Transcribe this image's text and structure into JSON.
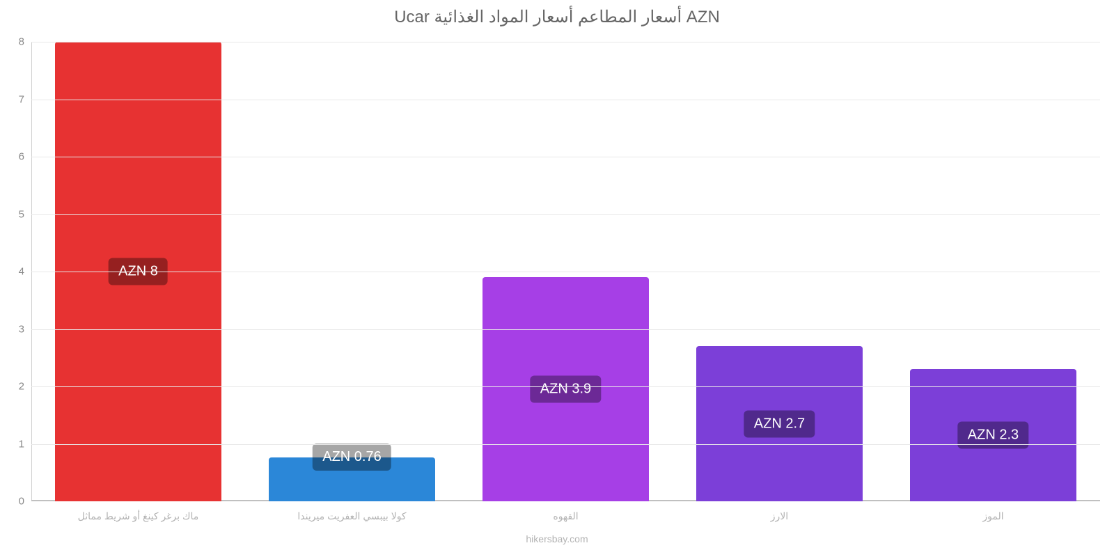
{
  "chart": {
    "type": "bar",
    "title": "Ucar أسعار المطاعم أسعار المواد الغذائية AZN",
    "title_fontsize": 24,
    "title_color": "#666666",
    "background_color": "#ffffff",
    "grid_color": "#e8e8e8",
    "axis_label_color": "#898989",
    "x_label_color": "#b3b3b3",
    "ylim": [
      0,
      8
    ],
    "ytick_step": 1,
    "yticks": [
      0,
      1,
      2,
      3,
      4,
      5,
      6,
      7,
      8
    ],
    "bar_width": 0.78,
    "bar_label_bg": "rgba(0,0,0,0.35)",
    "bar_label_color": "#ffffff",
    "bar_label_fontsize": 20,
    "categories": [
      "ماك برغر كينغ أو شريط مماثل",
      "كولا بيبسي العفريت ميريندا",
      "القهوه",
      "الارز",
      "الموز"
    ],
    "values": [
      8,
      0.76,
      3.9,
      2.7,
      2.3
    ],
    "bar_labels": [
      "AZN 8",
      "AZN 0.76",
      "AZN 3.9",
      "AZN 2.7",
      "AZN 2.3"
    ],
    "bar_colors": [
      "#e73232",
      "#2b87d8",
      "#a63fe6",
      "#7c3fd8",
      "#7c3fd8"
    ],
    "footer": "hikersbay.com",
    "x_label_fontsize": 14,
    "footer_fontsize": 14
  }
}
